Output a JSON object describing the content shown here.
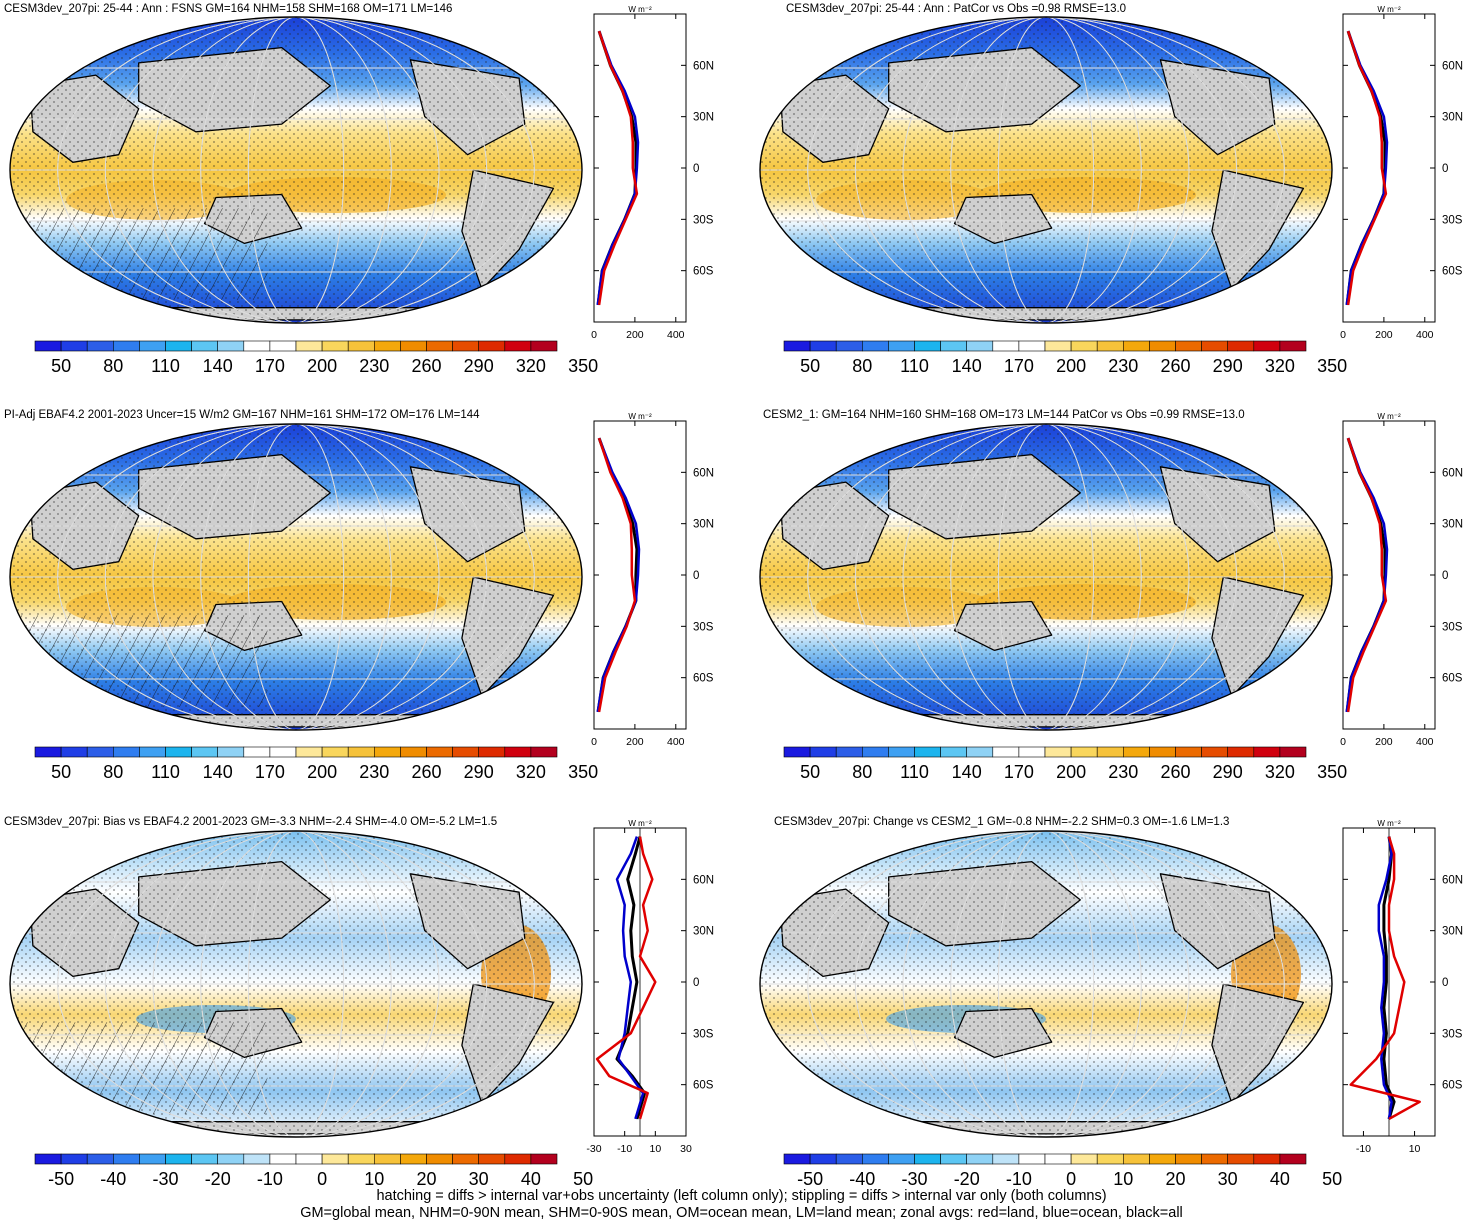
{
  "panels": [
    {
      "title": "CESM3dev_207pi: 25-44 : Ann : FSNS GM=164 NHM=158 SHM=168 OM=171 LM=146",
      "kind": "field",
      "hatched": true,
      "colorbar_labels": [
        "50",
        "80",
        "110",
        "140",
        "170",
        "200",
        "230",
        "260",
        "290",
        "320",
        "350"
      ],
      "zonal_xticks": [
        "0",
        "200",
        "400"
      ],
      "zonal_xrange": [
        0,
        450
      ]
    },
    {
      "title": "CESM3dev_207pi: 25-44 : Ann : PatCor vs Obs =0.98 RMSE=13.0",
      "kind": "field",
      "hatched": false,
      "colorbar_labels": [
        "50",
        "80",
        "110",
        "140",
        "170",
        "200",
        "230",
        "260",
        "290",
        "320",
        "350"
      ],
      "zonal_xticks": [
        "0",
        "200",
        "400"
      ],
      "zonal_xrange": [
        0,
        450
      ]
    },
    {
      "title": "PI-Adj EBAF4.2 2001-2023 Uncer=15 W/m2 GM=167 NHM=161 SHM=172 OM=176 LM=144",
      "kind": "field",
      "hatched": true,
      "colorbar_labels": [
        "50",
        "80",
        "110",
        "140",
        "170",
        "200",
        "230",
        "260",
        "290",
        "320",
        "350"
      ],
      "zonal_xticks": [
        "0",
        "200",
        "400"
      ],
      "zonal_xrange": [
        0,
        450
      ]
    },
    {
      "title": "CESM2_1: GM=164 NHM=160 SHM=168 OM=173 LM=144 PatCor vs Obs =0.99 RMSE=13.0",
      "kind": "field",
      "hatched": false,
      "colorbar_labels": [
        "50",
        "80",
        "110",
        "140",
        "170",
        "200",
        "230",
        "260",
        "290",
        "320",
        "350"
      ],
      "zonal_xticks": [
        "0",
        "200",
        "400"
      ],
      "zonal_xrange": [
        0,
        450
      ]
    },
    {
      "title": "CESM3dev_207pi: Bias vs EBAF4.2 2001-2023 GM=-3.3 NHM=-2.4 SHM=-4.0 OM=-5.2 LM=1.5",
      "kind": "diff",
      "hatched": true,
      "colorbar_labels": [
        "-50",
        "-40",
        "-30",
        "-20",
        "-10",
        "0",
        "10",
        "20",
        "30",
        "40",
        "50"
      ],
      "zonal_xticks": [
        "-30",
        "-10",
        "10",
        "30"
      ],
      "zonal_xrange": [
        -30,
        30
      ]
    },
    {
      "title": "CESM3dev_207pi: Change vs CESM2_1 GM=-0.8 NHM=-2.2 SHM=0.3 OM=-1.6 LM=1.3",
      "kind": "diff",
      "hatched": false,
      "colorbar_labels": [
        "-50",
        "-40",
        "-30",
        "-20",
        "-10",
        "0",
        "10",
        "20",
        "30",
        "40",
        "50"
      ],
      "zonal_xticks": [
        "-10",
        "10"
      ],
      "zonal_xrange": [
        -18,
        18
      ]
    }
  ],
  "zonal_units": "W m⁻²",
  "lat_labels": [
    "60N",
    "30N",
    "0",
    "30S",
    "60S"
  ],
  "footer": {
    "line1": "hatching = diffs > internal var+obs uncertainty (left column only); stippling = diffs > internal var only (both columns)",
    "line2": "GM=global mean, NHM=0-90N mean, SHM=0-90S mean, OM=ocean mean, LM=land mean; zonal avgs: red=land, blue=ocean, black=all"
  },
  "chart_data": [
    {
      "type": "line",
      "title": "CESM3dev_207pi: 25-44 : Ann : FSNS GM=164 NHM=158 SHM=168 OM=171 LM=146",
      "xlabel": "W m-2",
      "y_lat": [
        -80,
        -60,
        -45,
        -30,
        -15,
        0,
        15,
        30,
        45,
        60,
        80
      ],
      "series": [
        {
          "name": "all",
          "color": "#000000",
          "values": [
            20,
            40,
            90,
            150,
            200,
            205,
            205,
            185,
            140,
            80,
            25
          ]
        },
        {
          "name": "ocean",
          "color": "#0000cc",
          "values": [
            18,
            40,
            90,
            150,
            200,
            210,
            215,
            200,
            150,
            85,
            25
          ]
        },
        {
          "name": "land",
          "color": "#e00000",
          "values": [
            25,
            50,
            100,
            155,
            210,
            190,
            190,
            180,
            140,
            80,
            25
          ]
        }
      ]
    },
    {
      "type": "line",
      "title": "CESM3dev_207pi: 25-44 : Ann : PatCor vs Obs =0.98 RMSE=13.0",
      "xlabel": "W m-2",
      "y_lat": [
        -80,
        -60,
        -45,
        -30,
        -15,
        0,
        15,
        30,
        45,
        60,
        80
      ],
      "series": [
        {
          "name": "all",
          "color": "#000000",
          "values": [
            20,
            40,
            90,
            150,
            200,
            205,
            205,
            185,
            140,
            80,
            25
          ]
        },
        {
          "name": "ocean",
          "color": "#0000cc",
          "values": [
            18,
            40,
            90,
            150,
            200,
            210,
            215,
            200,
            150,
            85,
            25
          ]
        },
        {
          "name": "land",
          "color": "#e00000",
          "values": [
            25,
            50,
            100,
            155,
            210,
            190,
            190,
            180,
            140,
            80,
            25
          ]
        }
      ]
    },
    {
      "type": "line",
      "title": "PI-Adj EBAF4.2 2001-2023 Uncer=15 W/m2 GM=167 NHM=161 SHM=172 OM=176 LM=144",
      "xlabel": "W m-2",
      "y_lat": [
        -80,
        -60,
        -45,
        -30,
        -15,
        0,
        15,
        30,
        45,
        60,
        80
      ],
      "series": [
        {
          "name": "all",
          "color": "#000000",
          "values": [
            20,
            45,
            95,
            155,
            205,
            205,
            210,
            190,
            145,
            85,
            25
          ]
        },
        {
          "name": "ocean",
          "color": "#0000cc",
          "values": [
            18,
            45,
            95,
            155,
            205,
            215,
            220,
            205,
            155,
            90,
            25
          ]
        },
        {
          "name": "land",
          "color": "#e00000",
          "values": [
            25,
            55,
            105,
            160,
            200,
            185,
            185,
            180,
            140,
            80,
            25
          ]
        }
      ]
    },
    {
      "type": "line",
      "title": "CESM2_1: GM=164 NHM=160 SHM=168 OM=173 LM=144 PatCor vs Obs =0.99 RMSE=13.0",
      "xlabel": "W m-2",
      "y_lat": [
        -80,
        -60,
        -45,
        -30,
        -15,
        0,
        15,
        30,
        45,
        60,
        80
      ],
      "series": [
        {
          "name": "all",
          "color": "#000000",
          "values": [
            20,
            40,
            90,
            150,
            200,
            205,
            205,
            185,
            140,
            80,
            25
          ]
        },
        {
          "name": "ocean",
          "color": "#0000cc",
          "values": [
            18,
            40,
            90,
            150,
            200,
            210,
            215,
            200,
            150,
            85,
            25
          ]
        },
        {
          "name": "land",
          "color": "#e00000",
          "values": [
            25,
            50,
            100,
            155,
            210,
            190,
            190,
            180,
            140,
            80,
            25
          ]
        }
      ]
    },
    {
      "type": "line",
      "title": "CESM3dev_207pi: Bias vs EBAF4.2 2001-2023 GM=-3.3 NHM=-2.4 SHM=-4.0 OM=-5.2 LM=1.5",
      "xlabel": "W m-2",
      "y_lat": [
        -80,
        -65,
        -55,
        -45,
        -30,
        -15,
        0,
        15,
        30,
        45,
        60,
        75,
        85
      ],
      "series": [
        {
          "name": "all",
          "color": "#000000",
          "values": [
            -2,
            3,
            -5,
            -15,
            -8,
            -5,
            -2,
            -5,
            -6,
            -4,
            -8,
            -3,
            0
          ]
        },
        {
          "name": "ocean",
          "color": "#0000cc",
          "values": [
            -3,
            2,
            -6,
            -14,
            -10,
            -8,
            -6,
            -10,
            -11,
            -10,
            -15,
            -6,
            -2
          ]
        },
        {
          "name": "land",
          "color": "#e00000",
          "values": [
            0,
            5,
            -20,
            -28,
            -6,
            2,
            10,
            0,
            5,
            2,
            8,
            2,
            0
          ]
        }
      ]
    },
    {
      "type": "line",
      "title": "CESM3dev_207pi: Change vs CESM2_1 GM=-0.8 NHM=-2.2 SHM=0.3 OM=-1.6 LM=1.3",
      "xlabel": "W m-2",
      "y_lat": [
        -80,
        -70,
        -60,
        -45,
        -30,
        -15,
        0,
        15,
        30,
        45,
        60,
        75,
        85
      ],
      "series": [
        {
          "name": "all",
          "color": "#000000",
          "values": [
            0,
            2,
            -1,
            -2,
            -1,
            -2,
            -1,
            -1,
            -2,
            -2,
            0,
            1,
            0
          ]
        },
        {
          "name": "ocean",
          "color": "#0000cc",
          "values": [
            0,
            1,
            -2,
            -3,
            -2,
            -3,
            -2,
            -2,
            -4,
            -4,
            -1,
            1,
            0
          ]
        },
        {
          "name": "land",
          "color": "#e00000",
          "values": [
            0,
            12,
            -15,
            -5,
            2,
            4,
            6,
            2,
            0,
            0,
            2,
            2,
            0
          ]
        }
      ]
    }
  ]
}
